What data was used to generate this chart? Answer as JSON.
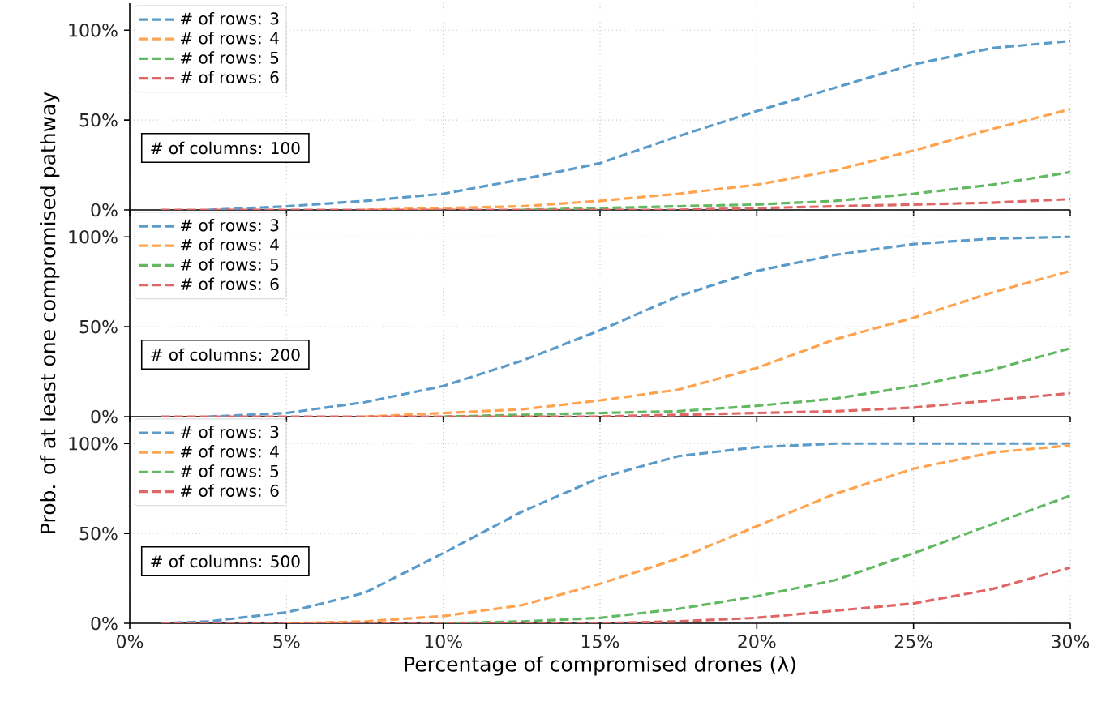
{
  "chart_data": [
    {
      "type": "line",
      "x": [
        1,
        2.5,
        5,
        7.5,
        10,
        12.5,
        15,
        17.5,
        20,
        22.5,
        25,
        27.5,
        30
      ],
      "xlim": [
        0,
        30
      ],
      "xticks": [
        {
          "value": 0,
          "label": null
        },
        {
          "value": 5,
          "label": null
        },
        {
          "value": 10,
          "label": null
        },
        {
          "value": 15,
          "label": null
        },
        {
          "value": 20,
          "label": null
        },
        {
          "value": 25,
          "label": null
        },
        {
          "value": 30,
          "label": null
        }
      ],
      "ylim": [
        0,
        115
      ],
      "yticks": [
        {
          "value": 0,
          "label": "0%"
        },
        {
          "value": 50,
          "label": "50%"
        },
        {
          "value": 100,
          "label": "100%"
        }
      ],
      "tick_labels": "y",
      "grid": true,
      "legend": "top left",
      "line_style": "dashed",
      "marker": "none",
      "annotations": [
        "# of columns: 100"
      ],
      "series": [
        {
          "name": "# of rows: 3",
          "color": "#5b9bc9",
          "values": [
            null,
            0,
            2,
            5,
            9,
            17,
            26,
            41,
            55,
            68,
            81,
            90,
            94
          ]
        },
        {
          "name": "# of rows: 4",
          "color": "#ffa34f",
          "values": [
            null,
            null,
            null,
            0,
            1,
            2,
            5,
            9,
            14,
            22,
            33,
            45,
            56
          ]
        },
        {
          "name": "# of rows: 5",
          "color": "#62b962",
          "values": [
            null,
            null,
            null,
            null,
            null,
            0,
            1,
            2,
            3,
            5,
            9,
            14,
            21
          ]
        },
        {
          "name": "# of rows: 6",
          "color": "#e06666",
          "values": [
            0,
            0,
            0,
            0,
            0,
            0,
            0,
            0,
            1,
            2,
            3,
            4,
            6
          ]
        }
      ]
    },
    {
      "type": "line",
      "x": [
        1,
        2.5,
        5,
        7.5,
        10,
        12.5,
        15,
        17.5,
        20,
        22.5,
        25,
        27.5,
        30
      ],
      "xlim": [
        0,
        30
      ],
      "xticks": [
        {
          "value": 0,
          "label": null
        },
        {
          "value": 5,
          "label": null
        },
        {
          "value": 10,
          "label": null
        },
        {
          "value": 15,
          "label": null
        },
        {
          "value": 20,
          "label": null
        },
        {
          "value": 25,
          "label": null
        },
        {
          "value": 30,
          "label": null
        }
      ],
      "ylim": [
        0,
        115
      ],
      "yticks": [
        {
          "value": 0,
          "label": "0%"
        },
        {
          "value": 50,
          "label": "50%"
        },
        {
          "value": 100,
          "label": "100%"
        }
      ],
      "tick_labels": "y",
      "grid": true,
      "legend": "top left",
      "line_style": "dashed",
      "marker": "none",
      "ylabel": "Prob. of at least one compromised pathway",
      "annotations": [
        "# of columns: 200"
      ],
      "series": [
        {
          "name": "# of rows: 3",
          "color": "#5b9bc9",
          "values": [
            null,
            0,
            2,
            8,
            17,
            31,
            48,
            67,
            81,
            90,
            96,
            99,
            100
          ]
        },
        {
          "name": "# of rows: 4",
          "color": "#ffa34f",
          "values": [
            null,
            null,
            null,
            0,
            2,
            4,
            9,
            15,
            27,
            43,
            55,
            69,
            81
          ]
        },
        {
          "name": "# of rows: 5",
          "color": "#62b962",
          "values": [
            null,
            null,
            null,
            null,
            0,
            1,
            2,
            3,
            6,
            10,
            17,
            26,
            38
          ]
        },
        {
          "name": "# of rows: 6",
          "color": "#e06666",
          "values": [
            0,
            0,
            0,
            0,
            0,
            0,
            0,
            1,
            2,
            3,
            5,
            9,
            13
          ]
        }
      ]
    },
    {
      "type": "line",
      "x": [
        1,
        2.5,
        5,
        7.5,
        10,
        12.5,
        15,
        17.5,
        20,
        22.5,
        25,
        27.5,
        30
      ],
      "xlim": [
        0,
        30
      ],
      "xticks": [
        {
          "value": 0,
          "label": "0%"
        },
        {
          "value": 5,
          "label": "5%"
        },
        {
          "value": 10,
          "label": "10%"
        },
        {
          "value": 15,
          "label": "15%"
        },
        {
          "value": 20,
          "label": "20%"
        },
        {
          "value": 25,
          "label": "25%"
        },
        {
          "value": 30,
          "label": "30%"
        }
      ],
      "ylim": [
        0,
        115
      ],
      "yticks": [
        {
          "value": 0,
          "label": "0%"
        },
        {
          "value": 50,
          "label": "50%"
        },
        {
          "value": 100,
          "label": "100%"
        }
      ],
      "grid": true,
      "legend": "top left",
      "line_style": "dashed",
      "marker": "none",
      "xlabel": "Percentage of compromised drones (λ)",
      "annotations": [
        "# of columns: 500"
      ],
      "series": [
        {
          "name": "# of rows: 3",
          "color": "#5b9bc9",
          "values": [
            0,
            1,
            6,
            17,
            39,
            62,
            81,
            93,
            98,
            100,
            100,
            100,
            100
          ]
        },
        {
          "name": "# of rows: 4",
          "color": "#ffa34f",
          "values": [
            null,
            null,
            0,
            1,
            4,
            10,
            22,
            36,
            54,
            72,
            86,
            95,
            99
          ]
        },
        {
          "name": "# of rows: 5",
          "color": "#62b962",
          "values": [
            null,
            null,
            null,
            null,
            0,
            1,
            3,
            8,
            15,
            24,
            39,
            55,
            71
          ]
        },
        {
          "name": "# of rows: 6",
          "color": "#e06666",
          "values": [
            0,
            0,
            0,
            0,
            0,
            0,
            0,
            1,
            3,
            7,
            11,
            19,
            31
          ]
        }
      ]
    }
  ]
}
